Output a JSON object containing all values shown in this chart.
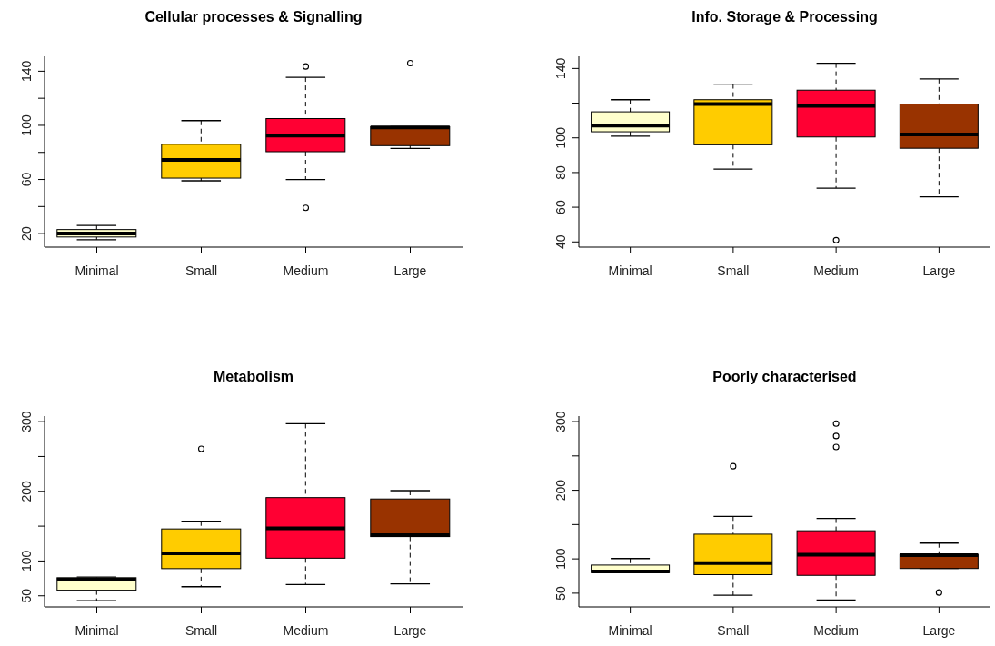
{
  "chart_data": [
    {
      "type": "box",
      "title": "Cellular processes & Signalling",
      "categories": [
        "Minimal",
        "Small",
        "Medium",
        "Large"
      ],
      "colors": [
        "#ffffcc",
        "#ffcc00",
        "#ff0033",
        "#993300"
      ],
      "boxes": [
        {
          "low": 15.5,
          "q1": 17.5,
          "median": 20,
          "q3": 23,
          "high": 26
        },
        {
          "low": 59,
          "q1": 61,
          "median": 74.5,
          "q3": 86,
          "high": 103.5
        },
        {
          "low": 60,
          "q1": 80.5,
          "median": 92.5,
          "q3": 105,
          "high": 135.5,
          "outliers": [
            39,
            143.5
          ]
        },
        {
          "low": 83,
          "q1": 85,
          "median": 98.5,
          "q3": 99,
          "high": 99,
          "outliers": [
            146
          ]
        }
      ],
      "ylim": [
        10,
        151
      ],
      "yticks": [
        20,
        {
          "value": 40,
          "label": null
        },
        60,
        {
          "value": 80,
          "label": null
        },
        100,
        {
          "value": 120,
          "label": null
        },
        140
      ]
    },
    {
      "type": "box",
      "title": "Info. Storage & Processing",
      "categories": [
        "Minimal",
        "Small",
        "Medium",
        "Large"
      ],
      "colors": [
        "#ffffcc",
        "#ffcc00",
        "#ff0033",
        "#993300"
      ],
      "boxes": [
        {
          "low": 101,
          "q1": 103.5,
          "median": 107,
          "q3": 115,
          "high": 122
        },
        {
          "low": 82,
          "q1": 96,
          "median": 119.5,
          "q3": 122,
          "high": 131
        },
        {
          "low": 71,
          "q1": 100.5,
          "median": 118.5,
          "q3": 127.5,
          "high": 143,
          "outliers": [
            41
          ]
        },
        {
          "low": 66,
          "q1": 94,
          "median": 102,
          "q3": 119.5,
          "high": 134
        }
      ],
      "ylim": [
        37,
        147
      ],
      "yticks": [
        40,
        60,
        80,
        100,
        {
          "value": 120,
          "label": null
        },
        140
      ]
    },
    {
      "type": "box",
      "title": "Metabolism",
      "categories": [
        "Minimal",
        "Small",
        "Medium",
        "Large"
      ],
      "colors": [
        "#ffffcc",
        "#ffcc00",
        "#ff0033",
        "#993300"
      ],
      "boxes": [
        {
          "low": 43,
          "q1": 58,
          "median": 73,
          "q3": 76,
          "high": 77
        },
        {
          "low": 63,
          "q1": 89,
          "median": 111,
          "q3": 146,
          "high": 157,
          "outliers": [
            261
          ]
        },
        {
          "low": 66,
          "q1": 104,
          "median": 147,
          "q3": 191,
          "high": 297
        },
        {
          "low": 67,
          "q1": 135,
          "median": 137,
          "q3": 189,
          "high": 201
        }
      ],
      "ylim": [
        34,
        308
      ],
      "yticks": [
        50,
        100,
        {
          "value": 150,
          "label": null
        },
        200,
        {
          "value": 250,
          "label": null
        },
        300
      ]
    },
    {
      "type": "box",
      "title": "Poorly characterised",
      "categories": [
        "Minimal",
        "Small",
        "Medium",
        "Large"
      ],
      "colors": [
        "#ffffcc",
        "#ffcc00",
        "#ff0033",
        "#993300"
      ],
      "boxes": [
        {
          "low": 80,
          "q1": 80,
          "median": 81.5,
          "q3": 91,
          "high": 100.5
        },
        {
          "low": 47,
          "q1": 77,
          "median": 94,
          "q3": 136,
          "high": 162,
          "outliers": [
            235
          ]
        },
        {
          "low": 40,
          "q1": 76,
          "median": 106,
          "q3": 141,
          "high": 159,
          "outliers": [
            263,
            279,
            297
          ]
        },
        {
          "low": 86,
          "q1": 86,
          "median": 105.5,
          "q3": 106.5,
          "high": 123,
          "outliers": [
            51
          ]
        }
      ],
      "ylim": [
        30,
        308
      ],
      "yticks": [
        50,
        100,
        {
          "value": 150,
          "label": null
        },
        200,
        {
          "value": 250,
          "label": null
        },
        300
      ]
    }
  ]
}
